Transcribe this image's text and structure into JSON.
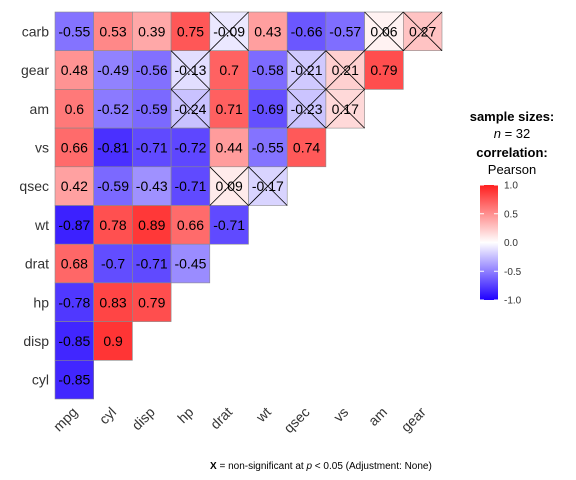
{
  "chart_data": {
    "type": "heatmap",
    "rows": [
      "carb",
      "gear",
      "am",
      "vs",
      "qsec",
      "wt",
      "drat",
      "hp",
      "disp",
      "cyl"
    ],
    "cols": [
      "mpg",
      "cyl",
      "disp",
      "hp",
      "drat",
      "wt",
      "qsec",
      "vs",
      "am",
      "gear"
    ],
    "values": [
      [
        -0.55,
        0.53,
        0.39,
        0.75,
        -0.09,
        0.43,
        -0.66,
        -0.57,
        0.06,
        0.27
      ],
      [
        0.48,
        -0.49,
        -0.56,
        -0.13,
        0.7,
        -0.58,
        -0.21,
        0.21,
        0.79
      ],
      [
        0.6,
        -0.52,
        -0.59,
        -0.24,
        0.71,
        -0.69,
        -0.23,
        0.17
      ],
      [
        0.66,
        -0.81,
        -0.71,
        -0.72,
        0.44,
        -0.55,
        0.74
      ],
      [
        0.42,
        -0.59,
        -0.43,
        -0.71,
        0.09,
        -0.17
      ],
      [
        -0.87,
        0.78,
        0.89,
        0.66,
        -0.71
      ],
      [
        0.68,
        -0.7,
        -0.71,
        -0.45
      ],
      [
        -0.78,
        0.83,
        0.79
      ],
      [
        -0.85,
        0.9
      ],
      [
        -0.85
      ]
    ],
    "non_significant": [
      [
        0,
        4
      ],
      [
        0,
        8
      ],
      [
        0,
        9
      ],
      [
        1,
        3
      ],
      [
        1,
        6
      ],
      [
        1,
        7
      ],
      [
        2,
        3
      ],
      [
        2,
        6
      ],
      [
        2,
        7
      ],
      [
        4,
        4
      ],
      [
        4,
        5
      ]
    ],
    "color_scale": {
      "low": "#1f00ff",
      "mid": "#ffffff",
      "high": "#ff1f1f",
      "limits": [
        -1,
        1
      ],
      "ticks": [
        "1.0",
        "0.5",
        "0.0",
        "-0.5",
        "-1.0"
      ]
    }
  },
  "legend": {
    "sample_sizes_title": "sample sizes:",
    "n_italic": "n",
    "n_rest": " = 32",
    "correlation_title": "correlation:",
    "correlation_method": "Pearson"
  },
  "caption": {
    "x_mark": "X",
    "prefix": " = non-significant at ",
    "p_italic": "p",
    "suffix": " < 0.05 (Adjustment: None)"
  }
}
